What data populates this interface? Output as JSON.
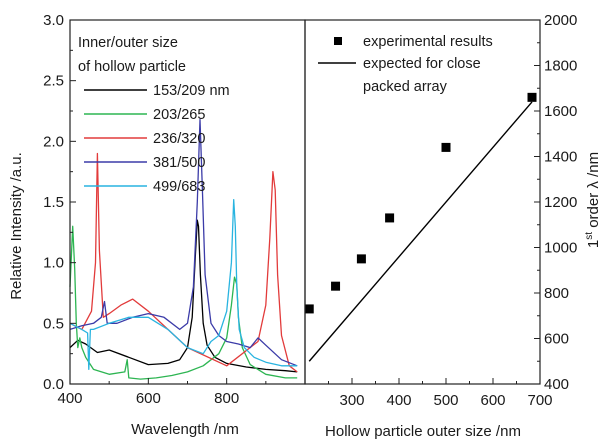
{
  "chart_data": [
    {
      "type": "line",
      "panel": "left",
      "xlabel": "Wavelength /nm",
      "ylabel": "Relative Intensity /a.u.",
      "xlim": [
        400,
        1000
      ],
      "ylim": [
        0,
        3.0
      ],
      "xticks": [
        400,
        600,
        800
      ],
      "yticks": [
        0.0,
        0.5,
        1.0,
        1.5,
        2.0,
        2.5,
        3.0
      ],
      "legend": {
        "title_lines": [
          "Inner/outer size",
          "of hollow particle"
        ],
        "placement": "top-left"
      },
      "series": [
        {
          "name": "153/209 nm",
          "color": "#000000",
          "x": [
            400,
            420,
            440,
            470,
            500,
            550,
            600,
            650,
            680,
            700,
            712,
            720,
            725,
            728,
            733,
            740,
            750,
            770,
            800,
            850,
            900,
            950,
            980
          ],
          "y": [
            0.3,
            0.36,
            0.33,
            0.26,
            0.28,
            0.22,
            0.16,
            0.17,
            0.2,
            0.3,
            0.55,
            1.05,
            1.35,
            1.3,
            0.9,
            0.5,
            0.32,
            0.22,
            0.17,
            0.14,
            0.12,
            0.11,
            0.1
          ]
        },
        {
          "name": "203/265",
          "color": "#2db552",
          "x": [
            400,
            407,
            412,
            416,
            420,
            425,
            430,
            440,
            460,
            500,
            540,
            546,
            550,
            580,
            620,
            660,
            700,
            740,
            780,
            800,
            812,
            820,
            826,
            830,
            840,
            860,
            900,
            950,
            980
          ],
          "y": [
            0.8,
            1.3,
            0.95,
            0.5,
            0.3,
            0.38,
            0.3,
            0.22,
            0.12,
            0.08,
            0.1,
            0.2,
            0.05,
            0.04,
            0.05,
            0.07,
            0.1,
            0.15,
            0.25,
            0.38,
            0.65,
            0.88,
            0.82,
            0.55,
            0.3,
            0.16,
            0.08,
            0.05,
            0.05
          ]
        },
        {
          "name": "236/320",
          "color": "#e23b3b",
          "x": [
            400,
            430,
            455,
            465,
            470,
            475,
            485,
            500,
            530,
            560,
            600,
            650,
            700,
            800,
            880,
            900,
            910,
            918,
            924,
            930,
            940,
            960,
            980
          ],
          "y": [
            0.5,
            0.45,
            0.6,
            1.0,
            1.9,
            1.1,
            0.55,
            0.58,
            0.65,
            0.7,
            0.6,
            0.45,
            0.3,
            0.15,
            0.35,
            0.65,
            1.2,
            1.75,
            1.6,
            0.9,
            0.4,
            0.15,
            0.1
          ]
        },
        {
          "name": "381/500",
          "color": "#3b3ba8",
          "x": [
            400,
            430,
            460,
            480,
            488,
            495,
            520,
            560,
            600,
            640,
            680,
            700,
            715,
            725,
            732,
            738,
            745,
            760,
            780,
            800,
            830,
            860,
            880,
            900,
            940,
            980
          ],
          "y": [
            0.45,
            0.48,
            0.5,
            0.55,
            0.68,
            0.5,
            0.5,
            0.55,
            0.58,
            0.55,
            0.45,
            0.5,
            0.8,
            1.5,
            2.18,
            1.6,
            0.9,
            0.5,
            0.4,
            0.35,
            0.33,
            0.3,
            0.38,
            0.32,
            0.2,
            0.15
          ]
        },
        {
          "name": "499/683",
          "color": "#29b4e0",
          "x": [
            400,
            430,
            445,
            448,
            452,
            460,
            500,
            550,
            600,
            650,
            700,
            740,
            760,
            780,
            800,
            812,
            818,
            822,
            826,
            832,
            845,
            870,
            900,
            940,
            980
          ],
          "y": [
            0.5,
            0.45,
            0.42,
            0.12,
            0.45,
            0.45,
            0.5,
            0.55,
            0.55,
            0.45,
            0.3,
            0.25,
            0.35,
            0.4,
            0.6,
            1.0,
            1.52,
            1.3,
            0.8,
            0.45,
            0.3,
            0.22,
            0.18,
            0.15,
            0.15
          ]
        }
      ]
    },
    {
      "type": "scatter",
      "panel": "right",
      "xlabel": "Hollow particle outer size /nm",
      "ylabel": "1st order λ /nm",
      "xlim": [
        200,
        700
      ],
      "ylim": [
        400,
        2000
      ],
      "xticks": [
        300,
        400,
        500,
        600,
        700
      ],
      "yticks": [
        400,
        600,
        800,
        1000,
        1200,
        1400,
        1600,
        1800,
        2000
      ],
      "legend": {
        "placement": "top-right"
      },
      "series": [
        {
          "name": "experimental results",
          "kind": "scatter",
          "color": "#000000",
          "x": [
            209,
            265,
            320,
            380,
            500,
            683
          ],
          "y": [
            730,
            830,
            950,
            1130,
            1440,
            1660
          ]
        },
        {
          "name": "expected for close packed array",
          "kind": "line",
          "color": "#000000",
          "x": [
            209,
            683
          ],
          "y": [
            500,
            1640
          ]
        }
      ]
    }
  ]
}
